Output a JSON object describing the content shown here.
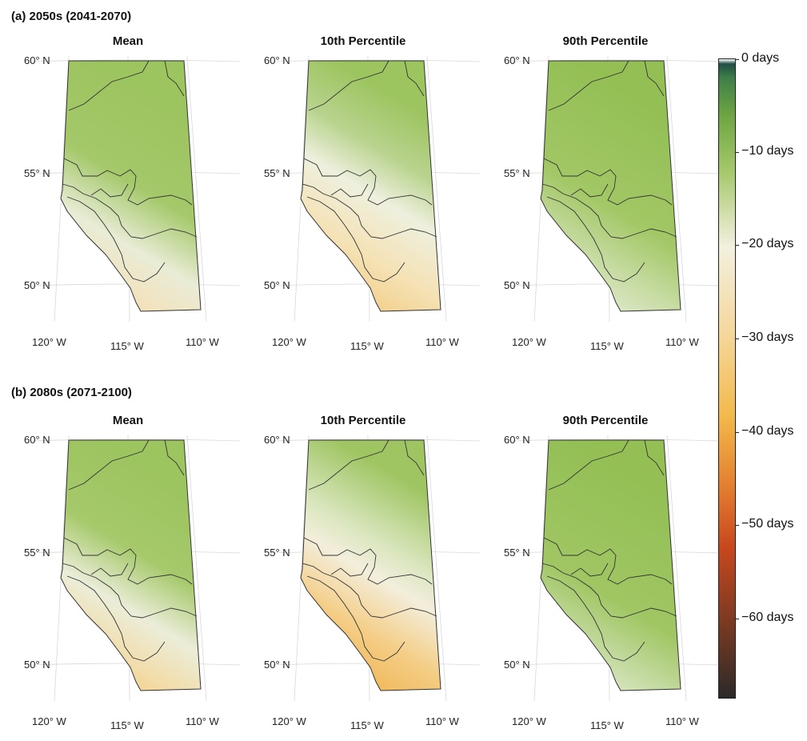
{
  "figure": {
    "rows": [
      {
        "label": "(a) 2050s (2041-2070)",
        "panels": [
          {
            "title": "Mean",
            "style": "mean"
          },
          {
            "title": "10th Percentile",
            "style": "p10"
          },
          {
            "title": "90th Percentile",
            "style": "p90"
          }
        ]
      },
      {
        "label": "(b) 2080s (2071-2100)",
        "panels": [
          {
            "title": "Mean",
            "style": "mean2"
          },
          {
            "title": "10th Percentile",
            "style": "p10b"
          },
          {
            "title": "90th Percentile",
            "style": "p90b"
          }
        ]
      }
    ],
    "lat_ticks": [
      "60° N",
      "55° N",
      "50° N"
    ],
    "lon_ticks": [
      "120° W",
      "115° W",
      "110° W"
    ]
  },
  "colorbar": {
    "labels": [
      "0 days",
      "−10 days",
      "−20 days",
      "−30 days",
      "−40 days",
      "−50 days",
      "−60 days"
    ],
    "stops": [
      {
        "value": 0,
        "color": "#ffffff"
      },
      {
        "value": -0.5,
        "color": "#1f4f46"
      },
      {
        "value": -2,
        "color": "#3f7f49"
      },
      {
        "value": -6,
        "color": "#6ea542"
      },
      {
        "value": -12,
        "color": "#a6c86c"
      },
      {
        "value": -20,
        "color": "#f3f0df"
      },
      {
        "value": -30,
        "color": "#f4d595"
      },
      {
        "value": -38,
        "color": "#f3b94b"
      },
      {
        "value": -46,
        "color": "#e27a2e"
      },
      {
        "value": -52,
        "color": "#c8471e"
      },
      {
        "value": -60,
        "color": "#7a3a22"
      },
      {
        "value": -68,
        "color": "#2b2a29"
      }
    ],
    "min": -68,
    "max": 0
  }
}
